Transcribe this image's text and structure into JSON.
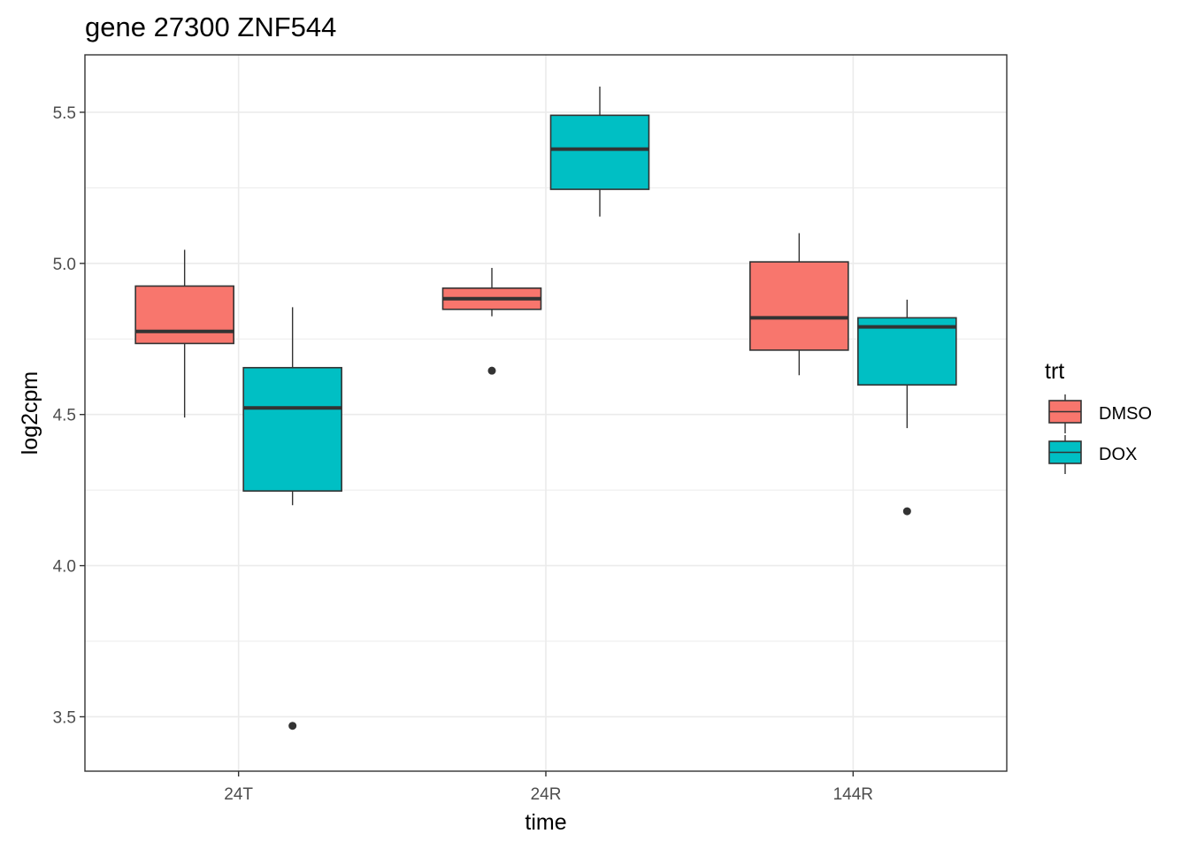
{
  "chart_data": {
    "type": "boxplot",
    "title": "gene 27300 ZNF544",
    "xlabel": "time",
    "ylabel": "log2cpm",
    "categories": [
      "24T",
      "24R",
      "144R"
    ],
    "ylim": [
      3.32,
      5.69
    ],
    "yticks": [
      3.5,
      4.0,
      4.5,
      5.0,
      5.5
    ],
    "ytick_labels": [
      "3.5",
      "4.0",
      "4.5",
      "5.0",
      "5.5"
    ],
    "grid": true,
    "legend": {
      "title": "trt",
      "position": "right",
      "entries": [
        "DMSO",
        "DOX"
      ]
    },
    "series": [
      {
        "name": "DMSO",
        "color": "#F8766D",
        "boxes": [
          {
            "category": "24T",
            "whisker_low": 4.49,
            "q1": 4.735,
            "median": 4.775,
            "q3": 4.925,
            "whisker_high": 5.045,
            "outliers": []
          },
          {
            "category": "24R",
            "whisker_low": 4.825,
            "q1": 4.848,
            "median": 4.883,
            "q3": 4.918,
            "whisker_high": 4.985,
            "outliers": [
              4.645
            ]
          },
          {
            "category": "144R",
            "whisker_low": 4.63,
            "q1": 4.713,
            "median": 4.82,
            "q3": 5.005,
            "whisker_high": 5.1,
            "outliers": []
          }
        ]
      },
      {
        "name": "DOX",
        "color": "#00BFC4",
        "boxes": [
          {
            "category": "24T",
            "whisker_low": 4.2,
            "q1": 4.247,
            "median": 4.522,
            "q3": 4.655,
            "whisker_high": 4.855,
            "outliers": [
              3.47
            ]
          },
          {
            "category": "24R",
            "whisker_low": 5.155,
            "q1": 5.245,
            "median": 5.378,
            "q3": 5.49,
            "whisker_high": 5.585,
            "outliers": []
          },
          {
            "category": "144R",
            "whisker_low": 4.455,
            "q1": 4.598,
            "median": 4.79,
            "q3": 4.82,
            "whisker_high": 4.88,
            "outliers": [
              4.18
            ]
          }
        ]
      }
    ]
  }
}
